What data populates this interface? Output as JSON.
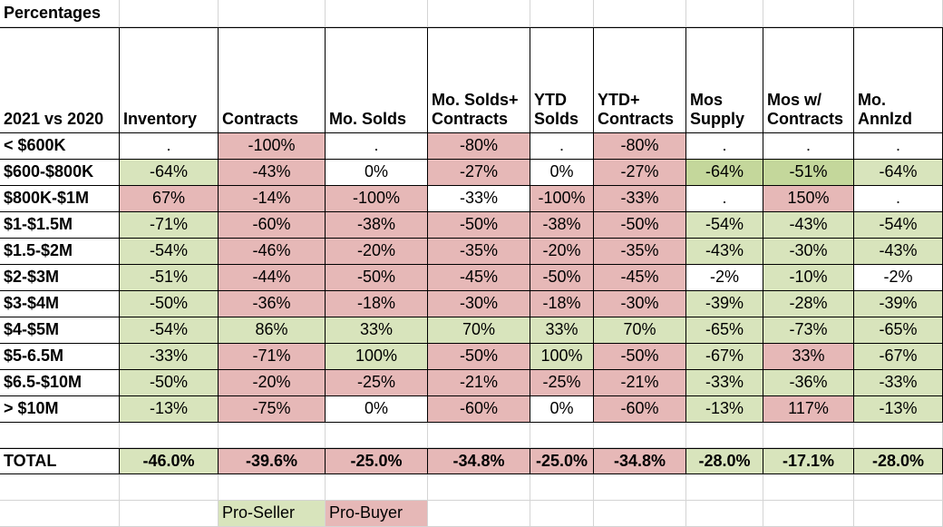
{
  "sheet_title": "Percentages",
  "header": {
    "row_label": "2021 vs 2020",
    "columns": [
      "Inventory",
      "Contracts",
      "Mo. Solds",
      "Mo. Solds+\nContracts",
      "YTD\nSolds",
      "YTD+\nContracts",
      "Mos\nSupply",
      "Mos w/\nContracts",
      "Mo.\nAnnlzd"
    ]
  },
  "colors": {
    "pro_seller": "#d8e4bc",
    "pro_seller_strong": "#c4d79b",
    "pro_buyer": "#e6b8b7",
    "none": "#ffffff",
    "gridline": "#d4d4d4",
    "border": "#000000"
  },
  "rows": [
    {
      "label": "< $600K",
      "cells": [
        {
          "v": ".",
          "c": "none"
        },
        {
          "v": "-100%",
          "c": "pro_buyer"
        },
        {
          "v": ".",
          "c": "none"
        },
        {
          "v": "-80%",
          "c": "pro_buyer"
        },
        {
          "v": ".",
          "c": "none"
        },
        {
          "v": "-80%",
          "c": "pro_buyer"
        },
        {
          "v": ".",
          "c": "none"
        },
        {
          "v": ".",
          "c": "none"
        },
        {
          "v": ".",
          "c": "none"
        }
      ]
    },
    {
      "label": "$600-$800K",
      "cells": [
        {
          "v": "-64%",
          "c": "pro_seller"
        },
        {
          "v": "-43%",
          "c": "pro_buyer"
        },
        {
          "v": "0%",
          "c": "none"
        },
        {
          "v": "-27%",
          "c": "pro_buyer"
        },
        {
          "v": "0%",
          "c": "none"
        },
        {
          "v": "-27%",
          "c": "pro_buyer"
        },
        {
          "v": "-64%",
          "c": "pro_seller_strong"
        },
        {
          "v": "-51%",
          "c": "pro_seller_strong"
        },
        {
          "v": "-64%",
          "c": "pro_seller"
        }
      ]
    },
    {
      "label": "$800K-$1M",
      "cells": [
        {
          "v": "67%",
          "c": "pro_buyer"
        },
        {
          "v": "-14%",
          "c": "pro_buyer"
        },
        {
          "v": "-100%",
          "c": "pro_buyer"
        },
        {
          "v": "-33%",
          "c": "none"
        },
        {
          "v": "-100%",
          "c": "pro_buyer"
        },
        {
          "v": "-33%",
          "c": "pro_buyer"
        },
        {
          "v": ".",
          "c": "none"
        },
        {
          "v": "150%",
          "c": "pro_buyer"
        },
        {
          "v": ".",
          "c": "none"
        }
      ]
    },
    {
      "label": "$1-$1.5M",
      "cells": [
        {
          "v": "-71%",
          "c": "pro_seller"
        },
        {
          "v": "-60%",
          "c": "pro_buyer"
        },
        {
          "v": "-38%",
          "c": "pro_buyer"
        },
        {
          "v": "-50%",
          "c": "pro_buyer"
        },
        {
          "v": "-38%",
          "c": "pro_buyer"
        },
        {
          "v": "-50%",
          "c": "pro_buyer"
        },
        {
          "v": "-54%",
          "c": "pro_seller"
        },
        {
          "v": "-43%",
          "c": "pro_seller"
        },
        {
          "v": "-54%",
          "c": "pro_seller"
        }
      ]
    },
    {
      "label": "$1.5-$2M",
      "cells": [
        {
          "v": "-54%",
          "c": "pro_seller"
        },
        {
          "v": "-46%",
          "c": "pro_buyer"
        },
        {
          "v": "-20%",
          "c": "pro_buyer"
        },
        {
          "v": "-35%",
          "c": "pro_buyer"
        },
        {
          "v": "-20%",
          "c": "pro_buyer"
        },
        {
          "v": "-35%",
          "c": "pro_buyer"
        },
        {
          "v": "-43%",
          "c": "pro_seller"
        },
        {
          "v": "-30%",
          "c": "pro_seller"
        },
        {
          "v": "-43%",
          "c": "pro_seller"
        }
      ]
    },
    {
      "label": "$2-$3M",
      "cells": [
        {
          "v": "-51%",
          "c": "pro_seller"
        },
        {
          "v": "-44%",
          "c": "pro_buyer"
        },
        {
          "v": "-50%",
          "c": "pro_buyer"
        },
        {
          "v": "-45%",
          "c": "pro_buyer"
        },
        {
          "v": "-50%",
          "c": "pro_buyer"
        },
        {
          "v": "-45%",
          "c": "pro_buyer"
        },
        {
          "v": "-2%",
          "c": "none"
        },
        {
          "v": "-10%",
          "c": "pro_seller"
        },
        {
          "v": "-2%",
          "c": "none"
        }
      ]
    },
    {
      "label": "$3-$4M",
      "cells": [
        {
          "v": "-50%",
          "c": "pro_seller"
        },
        {
          "v": "-36%",
          "c": "pro_buyer"
        },
        {
          "v": "-18%",
          "c": "pro_buyer"
        },
        {
          "v": "-30%",
          "c": "pro_buyer"
        },
        {
          "v": "-18%",
          "c": "pro_buyer"
        },
        {
          "v": "-30%",
          "c": "pro_buyer"
        },
        {
          "v": "-39%",
          "c": "pro_seller"
        },
        {
          "v": "-28%",
          "c": "pro_seller"
        },
        {
          "v": "-39%",
          "c": "pro_seller"
        }
      ]
    },
    {
      "label": "$4-$5M",
      "cells": [
        {
          "v": "-54%",
          "c": "pro_seller"
        },
        {
          "v": "86%",
          "c": "pro_seller"
        },
        {
          "v": "33%",
          "c": "pro_seller"
        },
        {
          "v": "70%",
          "c": "pro_seller"
        },
        {
          "v": "33%",
          "c": "pro_seller"
        },
        {
          "v": "70%",
          "c": "pro_seller"
        },
        {
          "v": "-65%",
          "c": "pro_seller"
        },
        {
          "v": "-73%",
          "c": "pro_seller"
        },
        {
          "v": "-65%",
          "c": "pro_seller"
        }
      ]
    },
    {
      "label": "$5-6.5M",
      "cells": [
        {
          "v": "-33%",
          "c": "pro_seller"
        },
        {
          "v": "-71%",
          "c": "pro_buyer"
        },
        {
          "v": "100%",
          "c": "pro_seller"
        },
        {
          "v": "-50%",
          "c": "pro_buyer"
        },
        {
          "v": "100%",
          "c": "pro_seller"
        },
        {
          "v": "-50%",
          "c": "pro_buyer"
        },
        {
          "v": "-67%",
          "c": "pro_seller"
        },
        {
          "v": "33%",
          "c": "pro_buyer"
        },
        {
          "v": "-67%",
          "c": "pro_seller"
        }
      ]
    },
    {
      "label": "$6.5-$10M",
      "cells": [
        {
          "v": "-50%",
          "c": "pro_seller"
        },
        {
          "v": "-20%",
          "c": "pro_buyer"
        },
        {
          "v": "-25%",
          "c": "pro_buyer"
        },
        {
          "v": "-21%",
          "c": "pro_buyer"
        },
        {
          "v": "-25%",
          "c": "pro_buyer"
        },
        {
          "v": "-21%",
          "c": "pro_buyer"
        },
        {
          "v": "-33%",
          "c": "pro_seller"
        },
        {
          "v": "-36%",
          "c": "pro_seller"
        },
        {
          "v": "-33%",
          "c": "pro_seller"
        }
      ]
    },
    {
      "label": "> $10M",
      "cells": [
        {
          "v": "-13%",
          "c": "pro_seller"
        },
        {
          "v": "-75%",
          "c": "pro_buyer"
        },
        {
          "v": "0%",
          "c": "none"
        },
        {
          "v": "-60%",
          "c": "pro_buyer"
        },
        {
          "v": "0%",
          "c": "none"
        },
        {
          "v": "-60%",
          "c": "pro_buyer"
        },
        {
          "v": "-13%",
          "c": "pro_seller"
        },
        {
          "v": "117%",
          "c": "pro_buyer"
        },
        {
          "v": "-13%",
          "c": "pro_seller"
        }
      ]
    }
  ],
  "total": {
    "label": "TOTAL",
    "cells": [
      {
        "v": "-46.0%",
        "c": "pro_seller"
      },
      {
        "v": "-39.6%",
        "c": "pro_buyer"
      },
      {
        "v": "-25.0%",
        "c": "pro_buyer"
      },
      {
        "v": "-34.8%",
        "c": "pro_buyer"
      },
      {
        "v": "-25.0%",
        "c": "pro_buyer"
      },
      {
        "v": "-34.8%",
        "c": "pro_buyer"
      },
      {
        "v": "-28.0%",
        "c": "pro_seller"
      },
      {
        "v": "-17.1%",
        "c": "pro_seller"
      },
      {
        "v": "-28.0%",
        "c": "pro_seller"
      }
    ]
  },
  "legend": {
    "pro_seller_label": "Pro-Seller",
    "pro_buyer_label": "Pro-Buyer"
  }
}
